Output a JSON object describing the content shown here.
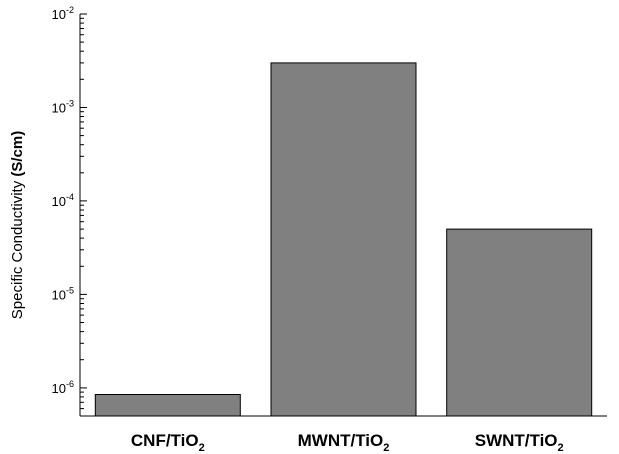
{
  "chart_data": {
    "type": "bar",
    "scale": "log",
    "ylim": [
      5e-07,
      0.01
    ],
    "y_ticks": [
      {
        "value": 1e-06,
        "base": "10",
        "exp": "-6"
      },
      {
        "value": 1e-05,
        "base": "10",
        "exp": "-5"
      },
      {
        "value": 0.0001,
        "base": "10",
        "exp": "-4"
      },
      {
        "value": 0.001,
        "base": "10",
        "exp": "-3"
      },
      {
        "value": 0.01,
        "base": "10",
        "exp": "-2"
      }
    ],
    "categories": [
      {
        "main": "CNF/TiO",
        "sub": "2"
      },
      {
        "main": "MWNT/TiO",
        "sub": "2"
      },
      {
        "main": "SWNT/TiO",
        "sub": "2"
      }
    ],
    "values": [
      8.5e-07,
      0.003,
      5e-05
    ],
    "ylabel": {
      "prefix": "Specific Conductivity ",
      "unit": "(S/cm)"
    },
    "xlabel": "",
    "title": "",
    "grid": false,
    "legend": "none",
    "bar_color": "#808080",
    "bar_edge_color": "#000000"
  }
}
